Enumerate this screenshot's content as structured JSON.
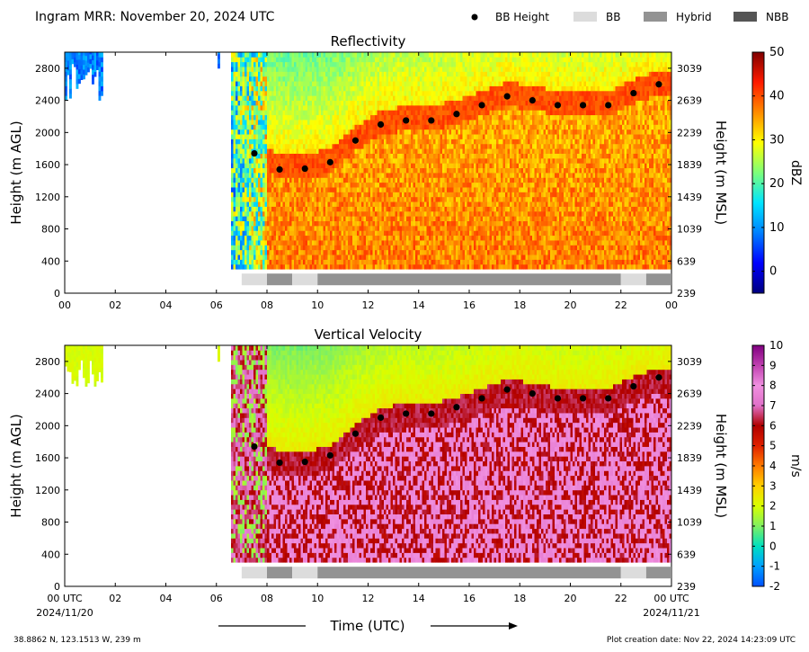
{
  "header": {
    "title": "Ingram MRR:  November 20, 2024 UTC",
    "legend": [
      {
        "label": "BB Height",
        "kind": "dot",
        "color": "#000000"
      },
      {
        "label": "BB",
        "kind": "box",
        "color": "#dcdcdc"
      },
      {
        "label": "Hybrid",
        "kind": "box",
        "color": "#939393"
      },
      {
        "label": "NBB",
        "kind": "box",
        "color": "#555555"
      }
    ]
  },
  "footer": {
    "location": "38.8862 N, 123.1513 W, 239 m",
    "creation": "Plot creation date: Nov 22, 2024 14:23:09 UTC",
    "xlabel": "Time (UTC)"
  },
  "chart_data": [
    {
      "type": "heatmap",
      "title": "Reflectivity",
      "xlabel": "Time (UTC)",
      "ylabel": "Height (m AGL)",
      "ylabel_right": "Height (m MSL)",
      "xlim": [
        0,
        24
      ],
      "ylim": [
        0,
        3000
      ],
      "x_ticks": [
        "00",
        "02",
        "04",
        "06",
        "08",
        "10",
        "12",
        "14",
        "16",
        "18",
        "20",
        "22",
        "00"
      ],
      "y_ticks": [
        "0",
        "400",
        "800",
        "1200",
        "1600",
        "2000",
        "2400",
        "2800"
      ],
      "y_ticks_right": [
        "239",
        "639",
        "1039",
        "1439",
        "1839",
        "2239",
        "2639",
        "3039"
      ],
      "colorbar": {
        "label": "dBZ",
        "range": [
          -5,
          50
        ],
        "ticks": [
          "0",
          "10",
          "20",
          "30",
          "40",
          "50"
        ],
        "colors": [
          "#00007f",
          "#0000ff",
          "#0080ff",
          "#00e5ff",
          "#7dff7a",
          "#ffff00",
          "#ff8c00",
          "#ff1a00",
          "#7f0000"
        ]
      },
      "bb_height": {
        "x": [
          7.5,
          8.5,
          9.5,
          10.5,
          11.5,
          12.5,
          13.5,
          14.5,
          15.5,
          16.5,
          17.5,
          18.5,
          19.5,
          20.5,
          21.5,
          22.5,
          23.5
        ],
        "y": [
          1740,
          1540,
          1550,
          1630,
          1900,
          2100,
          2150,
          2150,
          2230,
          2340,
          2450,
          2400,
          2340,
          2340,
          2340,
          2490,
          2600
        ]
      },
      "bb_type_segments": [
        {
          "start": 7.0,
          "end": 8.0,
          "type": "BB"
        },
        {
          "start": 8.0,
          "end": 9.0,
          "type": "Hybrid"
        },
        {
          "start": 9.0,
          "end": 10.0,
          "type": "BB"
        },
        {
          "start": 10.0,
          "end": 22.0,
          "type": "Hybrid"
        },
        {
          "start": 22.0,
          "end": 23.0,
          "type": "BB"
        },
        {
          "start": 23.0,
          "end": 24.0,
          "type": "Hybrid"
        }
      ]
    },
    {
      "type": "heatmap",
      "title": "Vertical Velocity",
      "xlabel": "Time (UTC)",
      "ylabel": "Height (m AGL)",
      "ylabel_right": "Height (m MSL)",
      "xlim": [
        0,
        24
      ],
      "ylim": [
        0,
        3000
      ],
      "x_ticks": [
        "00 UTC",
        "02",
        "04",
        "06",
        "08",
        "10",
        "12",
        "14",
        "16",
        "18",
        "20",
        "22",
        "00 UTC"
      ],
      "x_date_left": "2024/11/20",
      "x_date_right": "2024/11/21",
      "y_ticks": [
        "0",
        "400",
        "800",
        "1200",
        "1600",
        "2000",
        "2400",
        "2800"
      ],
      "y_ticks_right": [
        "239",
        "639",
        "1039",
        "1439",
        "1839",
        "2239",
        "2639",
        "3039"
      ],
      "colorbar": {
        "label": "m/s",
        "range": [
          -2,
          10
        ],
        "ticks": [
          "-2",
          "-1",
          "0",
          "1",
          "2",
          "3",
          "4",
          "5",
          "6",
          "7",
          "8",
          "9",
          "10"
        ],
        "colors": [
          "#0050ff",
          "#00a0ff",
          "#00e0c0",
          "#80f060",
          "#d8ff00",
          "#ffd000",
          "#ff7a00",
          "#e02000",
          "#b00000",
          "#e070c8",
          "#f090e0",
          "#c040b0",
          "#800080"
        ]
      },
      "bb_height": {
        "x": [
          7.5,
          8.5,
          9.5,
          10.5,
          11.5,
          12.5,
          13.5,
          14.5,
          15.5,
          16.5,
          17.5,
          18.5,
          19.5,
          20.5,
          21.5,
          22.5,
          23.5
        ],
        "y": [
          1740,
          1540,
          1550,
          1630,
          1900,
          2100,
          2150,
          2150,
          2230,
          2340,
          2450,
          2400,
          2340,
          2340,
          2340,
          2490,
          2600
        ]
      },
      "bb_type_segments": [
        {
          "start": 7.0,
          "end": 8.0,
          "type": "BB"
        },
        {
          "start": 8.0,
          "end": 9.0,
          "type": "Hybrid"
        },
        {
          "start": 9.0,
          "end": 10.0,
          "type": "BB"
        },
        {
          "start": 10.0,
          "end": 22.0,
          "type": "Hybrid"
        },
        {
          "start": 22.0,
          "end": 23.0,
          "type": "BB"
        },
        {
          "start": 23.0,
          "end": 24.0,
          "type": "Hybrid"
        }
      ]
    }
  ]
}
